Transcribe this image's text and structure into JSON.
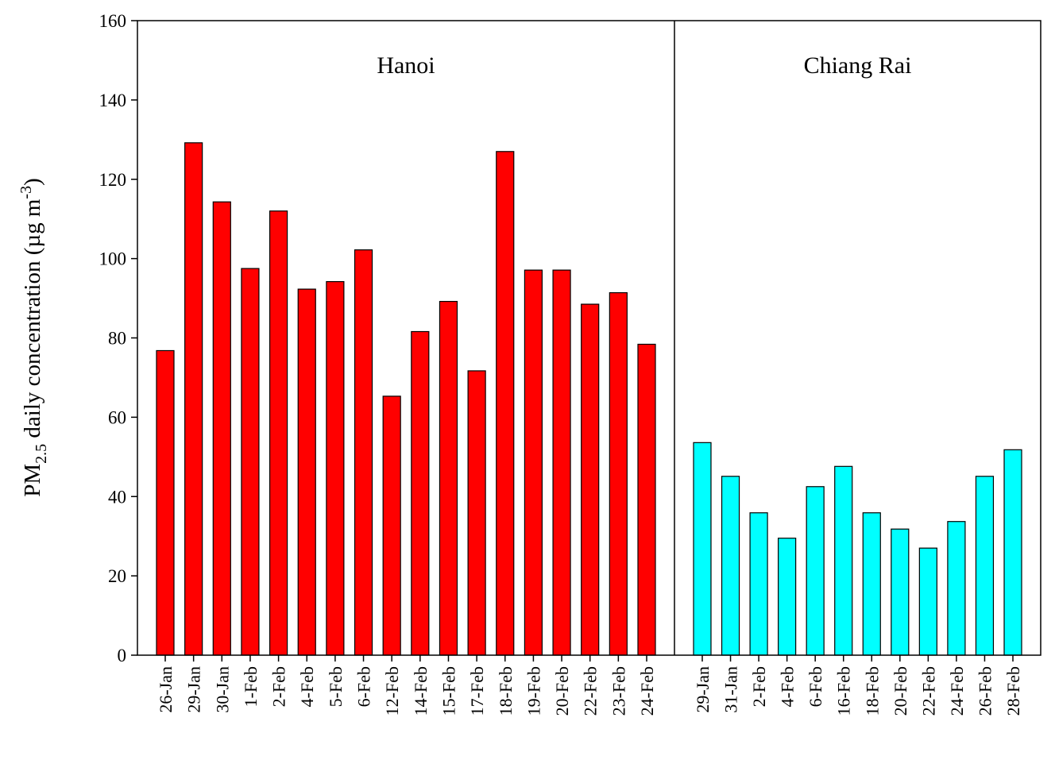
{
  "chart_data": {
    "type": "bar",
    "ylabel": {
      "main": "PM",
      "sub": "2.5",
      "text": " daily concentration (µg m",
      "sup": "-3",
      "end": ")"
    },
    "ylim": [
      0,
      160
    ],
    "yticks": [
      0,
      20,
      40,
      60,
      80,
      100,
      120,
      140,
      160
    ],
    "panels": [
      {
        "title": "Hanoi",
        "color": "#ff0000",
        "categories": [
          "26-Jan",
          "29-Jan",
          "30-Jan",
          "1-Feb",
          "2-Feb",
          "4-Feb",
          "5-Feb",
          "6-Feb",
          "12-Feb",
          "14-Feb",
          "15-Feb",
          "17-Feb",
          "18-Feb",
          "19-Feb",
          "20-Feb",
          "22-Feb",
          "23-Feb",
          "24-Feb"
        ],
        "values": [
          76.8,
          129.2,
          114.3,
          97.5,
          112,
          92.3,
          94.2,
          102.2,
          65.3,
          81.6,
          89.2,
          71.7,
          127,
          97.1,
          97.1,
          88.5,
          91.4,
          78.4
        ]
      },
      {
        "title": "Chiang Rai",
        "color": "#00ffff",
        "categories": [
          "29-Jan",
          "31-Jan",
          "2-Feb",
          "4-Feb",
          "6-Feb",
          "16-Feb",
          "18-Feb",
          "20-Feb",
          "22-Feb",
          "24-Feb",
          "26-Feb",
          "28-Feb"
        ],
        "values": [
          53.6,
          45.1,
          35.9,
          29.5,
          42.5,
          47.6,
          35.9,
          31.8,
          27,
          33.7,
          45.1,
          51.8
        ]
      }
    ]
  }
}
